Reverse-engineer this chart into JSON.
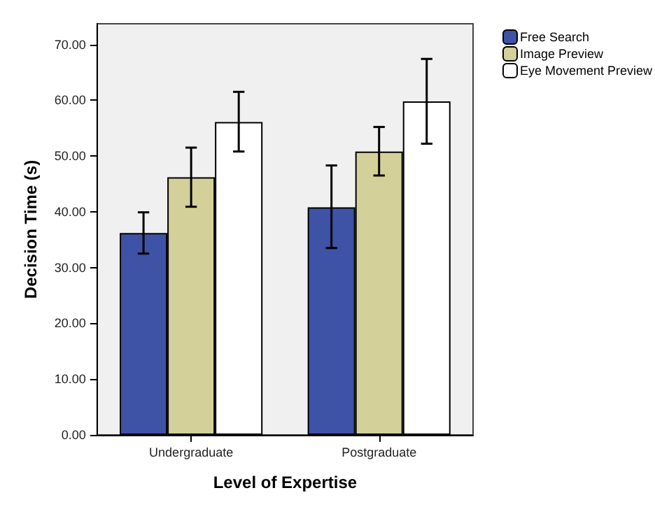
{
  "chart_data": {
    "type": "bar",
    "xlabel": "Level of Expertise",
    "ylabel": "Decision Time (s)",
    "categories": [
      "Undergraduate",
      "Postgraduate"
    ],
    "series": [
      {
        "name": "Free Search",
        "color": "#3e53a6",
        "values": [
          36.2,
          40.8
        ],
        "errors": [
          [
            32.5,
            39.9
          ],
          [
            33.5,
            48.3
          ]
        ]
      },
      {
        "name": "Image Preview",
        "color": "#d3d09a",
        "values": [
          46.2,
          50.8
        ],
        "errors": [
          [
            40.9,
            51.5
          ],
          [
            46.5,
            55.2
          ]
        ]
      },
      {
        "name": "Eye Movement Preview",
        "color": "#ffffff",
        "values": [
          56.1,
          59.8
        ],
        "errors": [
          [
            50.8,
            61.5
          ],
          [
            52.2,
            67.4
          ]
        ]
      }
    ],
    "ylim": [
      0,
      73.7
    ],
    "yticks": [
      {
        "value": 0,
        "label": "0.00"
      },
      {
        "value": 10,
        "label": "10.00"
      },
      {
        "value": 20,
        "label": "20.00"
      },
      {
        "value": 30,
        "label": "30.00"
      },
      {
        "value": 40,
        "label": "40.00"
      },
      {
        "value": 50,
        "label": "50.00"
      },
      {
        "value": 60,
        "label": "60.00"
      },
      {
        "value": 70,
        "label": "70.00"
      }
    ],
    "grid": false,
    "legend": "top right"
  }
}
